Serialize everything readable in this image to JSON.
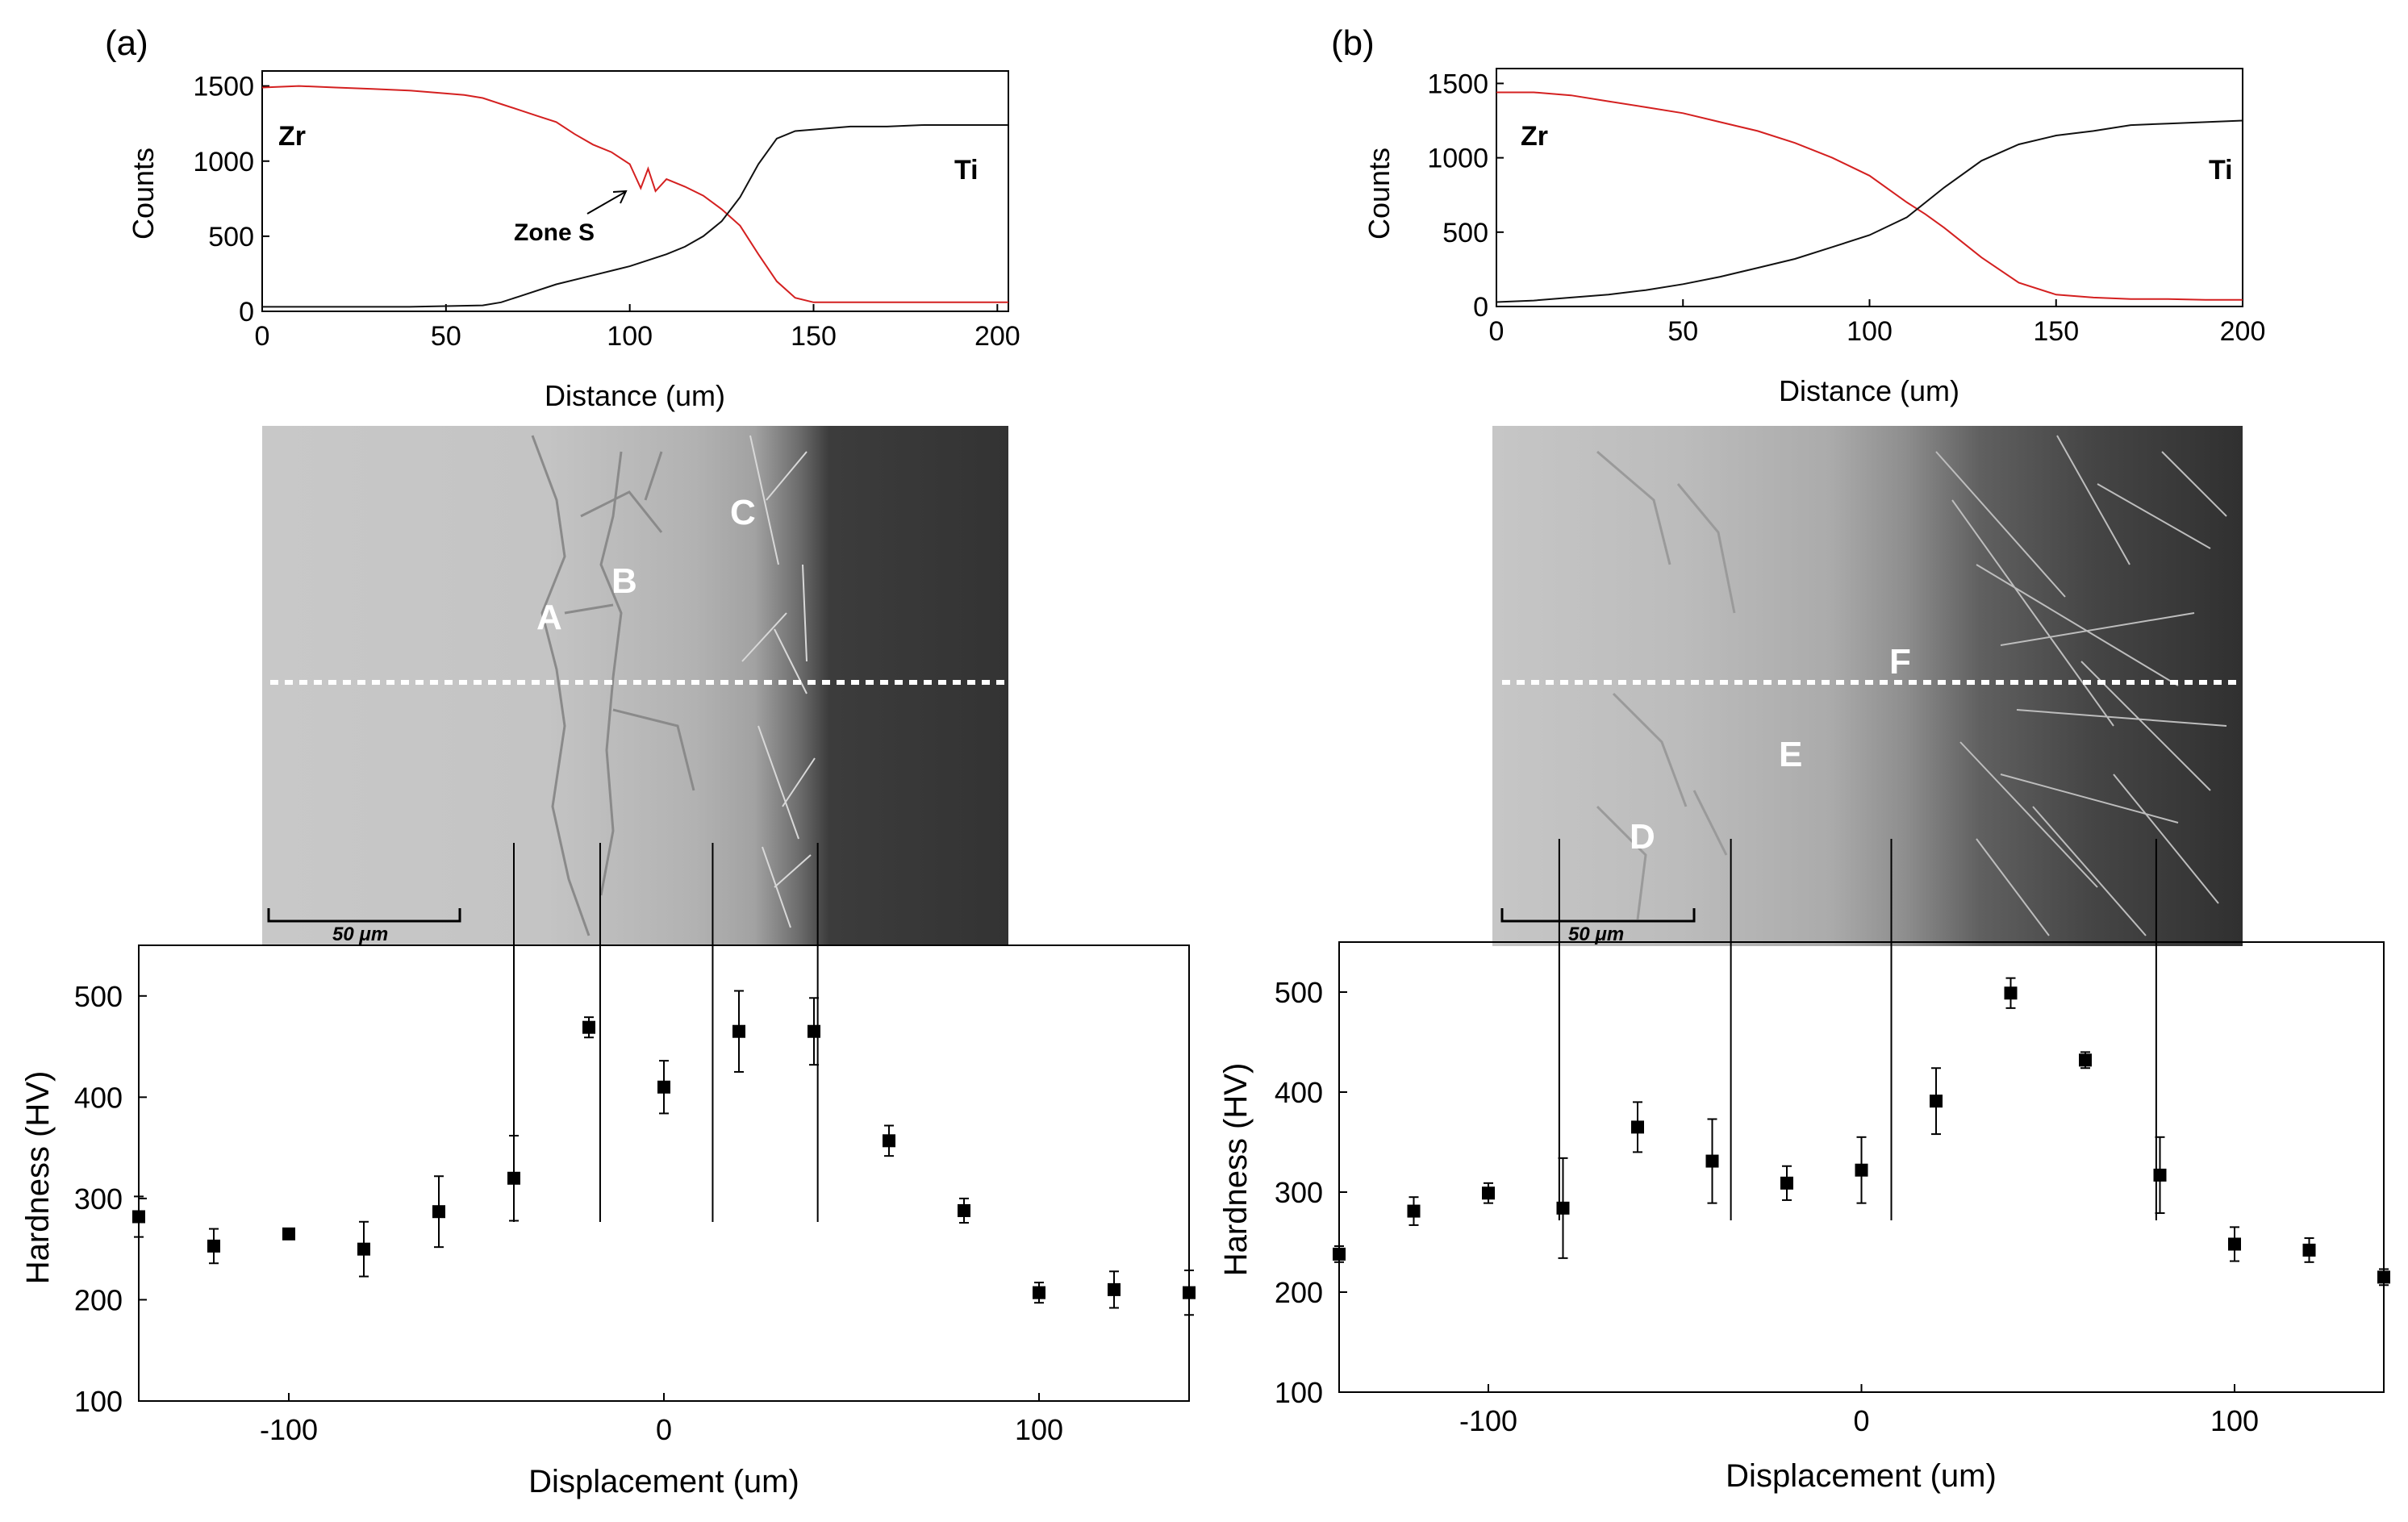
{
  "chart_data": [
    {
      "id": "a_line",
      "type": "line",
      "panel_label": "(a)",
      "xlabel": "Distance (um)",
      "ylabel": "Counts",
      "xlim": [
        0,
        203
      ],
      "ylim": [
        0,
        1600
      ],
      "xticks": [
        0,
        50,
        100,
        150,
        200
      ],
      "yticks": [
        0,
        500,
        1000,
        1500
      ],
      "series": [
        {
          "name": "Zr",
          "color": "#d42020",
          "x": [
            0,
            10,
            20,
            30,
            40,
            50,
            55,
            60,
            65,
            70,
            75,
            80,
            85,
            90,
            95,
            100,
            103,
            105,
            107,
            110,
            115,
            120,
            125,
            130,
            135,
            140,
            145,
            150,
            160,
            170,
            180,
            190,
            203
          ],
          "y": [
            1490,
            1500,
            1490,
            1480,
            1470,
            1450,
            1440,
            1420,
            1380,
            1340,
            1300,
            1260,
            1180,
            1110,
            1060,
            980,
            820,
            950,
            800,
            880,
            830,
            770,
            680,
            570,
            380,
            200,
            90,
            60,
            60,
            60,
            60,
            60,
            60
          ]
        },
        {
          "name": "Ti",
          "color": "#111111",
          "x": [
            0,
            20,
            40,
            60,
            65,
            70,
            80,
            90,
            100,
            110,
            115,
            120,
            125,
            130,
            135,
            140,
            145,
            150,
            160,
            170,
            180,
            190,
            203
          ],
          "y": [
            30,
            30,
            30,
            40,
            60,
            100,
            180,
            240,
            300,
            380,
            430,
            500,
            600,
            760,
            980,
            1150,
            1200,
            1210,
            1230,
            1230,
            1240,
            1240,
            1240
          ]
        }
      ],
      "annotations": [
        "Zr",
        "Ti",
        "Zone S"
      ]
    },
    {
      "id": "a_hardness",
      "type": "scatter",
      "xlabel": "Displacement (um)",
      "ylabel": "Hardness (HV)",
      "xlim": [
        -140,
        140
      ],
      "ylim": [
        100,
        550
      ],
      "xticks": [
        -100,
        0,
        100
      ],
      "yticks": [
        100,
        200,
        300,
        400,
        500
      ],
      "points": [
        {
          "x": -140,
          "y": 282,
          "err": 20
        },
        {
          "x": -120,
          "y": 253,
          "err": 17
        },
        {
          "x": -100,
          "y": 265,
          "err": 5
        },
        {
          "x": -80,
          "y": 250,
          "err": 27
        },
        {
          "x": -60,
          "y": 287,
          "err": 35
        },
        {
          "x": -40,
          "y": 320,
          "err": 42
        },
        {
          "x": -20,
          "y": 469,
          "err": 10
        },
        {
          "x": 0,
          "y": 410,
          "err": 26
        },
        {
          "x": 20,
          "y": 465,
          "err": 40
        },
        {
          "x": 40,
          "y": 465,
          "err": 33
        },
        {
          "x": 60,
          "y": 357,
          "err": 15
        },
        {
          "x": 80,
          "y": 288,
          "err": 12
        },
        {
          "x": 100,
          "y": 207,
          "err": 10
        },
        {
          "x": 120,
          "y": 210,
          "err": 18
        },
        {
          "x": 140,
          "y": 207,
          "err": 22
        }
      ],
      "boundaries_x": [
        -40,
        -17,
        13,
        41
      ]
    },
    {
      "id": "b_line",
      "type": "line",
      "panel_label": "(b)",
      "xlabel": "Distance (um)",
      "ylabel": "Counts",
      "xlim": [
        0,
        200
      ],
      "ylim": [
        0,
        1600
      ],
      "xticks": [
        0,
        50,
        100,
        150,
        200
      ],
      "yticks": [
        0,
        500,
        1000,
        1500
      ],
      "series": [
        {
          "name": "Zr",
          "color": "#d42020",
          "x": [
            0,
            10,
            20,
            30,
            40,
            50,
            60,
            70,
            80,
            90,
            100,
            110,
            115,
            120,
            130,
            140,
            150,
            160,
            170,
            180,
            190,
            200
          ],
          "y": [
            1440,
            1440,
            1420,
            1380,
            1340,
            1300,
            1240,
            1180,
            1100,
            1000,
            880,
            700,
            620,
            530,
            330,
            160,
            80,
            60,
            50,
            50,
            45,
            45
          ]
        },
        {
          "name": "Ti",
          "color": "#111111",
          "x": [
            0,
            10,
            20,
            30,
            40,
            50,
            60,
            70,
            80,
            90,
            100,
            110,
            120,
            130,
            140,
            150,
            160,
            170,
            180,
            190,
            200
          ],
          "y": [
            30,
            40,
            60,
            80,
            110,
            150,
            200,
            260,
            320,
            400,
            480,
            600,
            800,
            980,
            1090,
            1150,
            1180,
            1220,
            1230,
            1240,
            1250
          ]
        }
      ],
      "annotations": [
        "Zr",
        "Ti"
      ]
    },
    {
      "id": "b_hardness",
      "type": "scatter",
      "xlabel": "Displacement (um)",
      "ylabel": "Hardness (HV)",
      "xlim": [
        -140,
        140
      ],
      "ylim": [
        100,
        550
      ],
      "xticks": [
        -100,
        0,
        100
      ],
      "yticks": [
        100,
        200,
        300,
        400,
        500
      ],
      "points": [
        {
          "x": -140,
          "y": 238,
          "err": 8
        },
        {
          "x": -120,
          "y": 281,
          "err": 14
        },
        {
          "x": -100,
          "y": 299,
          "err": 10
        },
        {
          "x": -80,
          "y": 284,
          "err": 50
        },
        {
          "x": -60,
          "y": 365,
          "err": 25
        },
        {
          "x": -40,
          "y": 331,
          "err": 42
        },
        {
          "x": -20,
          "y": 309,
          "err": 17
        },
        {
          "x": 0,
          "y": 322,
          "err": 33
        },
        {
          "x": 20,
          "y": 391,
          "err": 33
        },
        {
          "x": 40,
          "y": 499,
          "err": 15
        },
        {
          "x": 60,
          "y": 432,
          "err": 8
        },
        {
          "x": 80,
          "y": 317,
          "err": 38
        },
        {
          "x": 100,
          "y": 248,
          "err": 17
        },
        {
          "x": 120,
          "y": 242,
          "err": 12
        },
        {
          "x": 140,
          "y": 215,
          "err": 8
        }
      ],
      "boundaries_x": [
        -81,
        -35,
        8,
        79
      ]
    }
  ],
  "micrographs": {
    "a": {
      "labels": [
        "A",
        "B",
        "C"
      ],
      "scale_bar": "50 μm"
    },
    "b": {
      "labels": [
        "D",
        "E",
        "F"
      ],
      "scale_bar": "50 μm"
    }
  }
}
